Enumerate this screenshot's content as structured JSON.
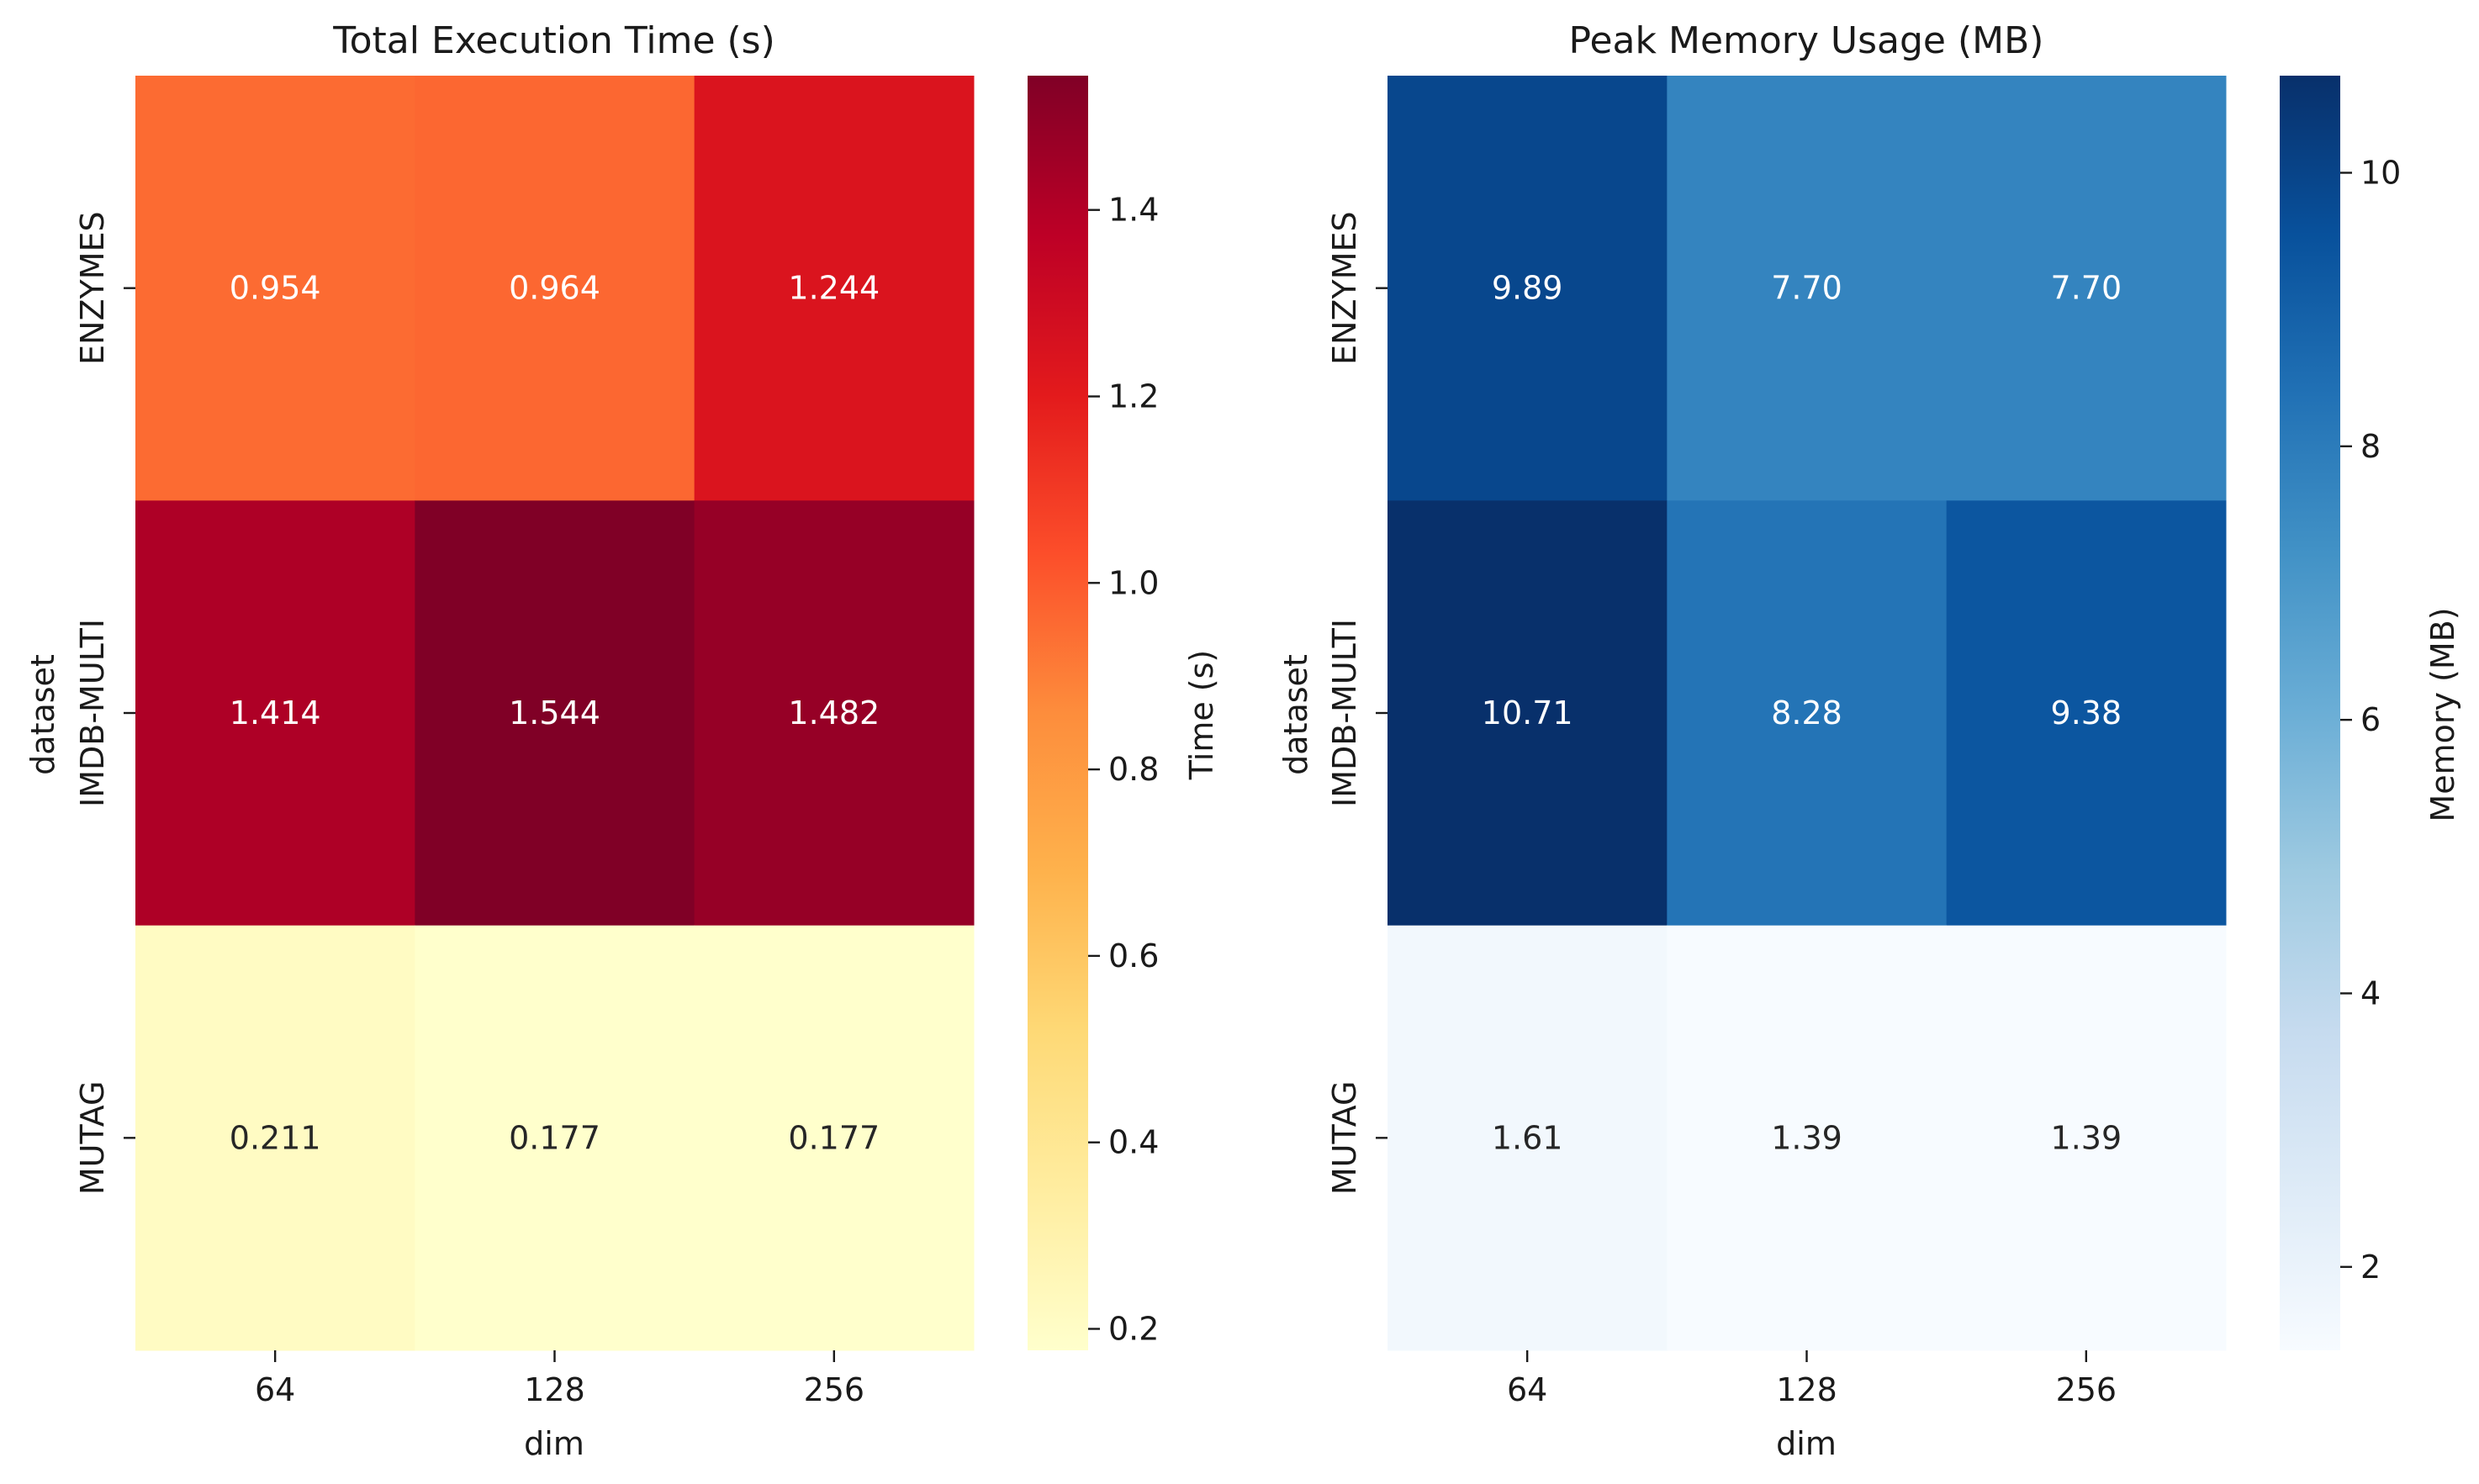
{
  "chart_data": [
    {
      "type": "heatmap",
      "title": "Total Execution Time (s)",
      "xlabel": "dim",
      "ylabel": "dataset",
      "x_categories": [
        "64",
        "128",
        "256"
      ],
      "y_categories": [
        "ENZYMES",
        "IMDB-MULTI",
        "MUTAG"
      ],
      "values": [
        [
          0.954,
          0.964,
          1.244
        ],
        [
          1.414,
          1.544,
          1.482
        ],
        [
          0.211,
          0.177,
          0.177
        ]
      ],
      "cell_labels": [
        [
          "0.954",
          "0.964",
          "1.244"
        ],
        [
          "1.414",
          "1.544",
          "1.482"
        ],
        [
          "0.211",
          "0.177",
          "0.177"
        ]
      ],
      "colormap": "YlOrRd",
      "colormap_stops": [
        "#ffffcc",
        "#ffeda0",
        "#fed976",
        "#feb24c",
        "#fd8d3c",
        "#fc4e2a",
        "#e31a1c",
        "#bd0026",
        "#800026"
      ],
      "vmin": 0.177,
      "vmax": 1.544,
      "colorbar_label": "Time (s)",
      "colorbar_ticks": [
        0.2,
        0.4,
        0.6,
        0.8,
        1.0,
        1.2,
        1.4
      ],
      "colorbar_tick_labels": [
        "0.2",
        "0.4",
        "0.6",
        "0.8",
        "1.0",
        "1.2",
        "1.4"
      ]
    },
    {
      "type": "heatmap",
      "title": "Peak Memory Usage (MB)",
      "xlabel": "dim",
      "ylabel": "dataset",
      "x_categories": [
        "64",
        "128",
        "256"
      ],
      "y_categories": [
        "ENZYMES",
        "IMDB-MULTI",
        "MUTAG"
      ],
      "values": [
        [
          9.89,
          7.7,
          7.7
        ],
        [
          10.71,
          8.28,
          9.38
        ],
        [
          1.61,
          1.39,
          1.39
        ]
      ],
      "cell_labels": [
        [
          "9.89",
          "7.70",
          "7.70"
        ],
        [
          "10.71",
          "8.28",
          "9.38"
        ],
        [
          "1.61",
          "1.39",
          "1.39"
        ]
      ],
      "colormap": "Blues",
      "colormap_stops": [
        "#f7fbff",
        "#deebf7",
        "#c6dbef",
        "#9ecae1",
        "#6baed6",
        "#4292c6",
        "#2171b5",
        "#08519c",
        "#08306b"
      ],
      "vmin": 1.39,
      "vmax": 10.71,
      "colorbar_label": "Memory (MB)",
      "colorbar_ticks": [
        2,
        4,
        6,
        8,
        10
      ],
      "colorbar_tick_labels": [
        "2",
        "4",
        "6",
        "8",
        "10"
      ]
    }
  ]
}
